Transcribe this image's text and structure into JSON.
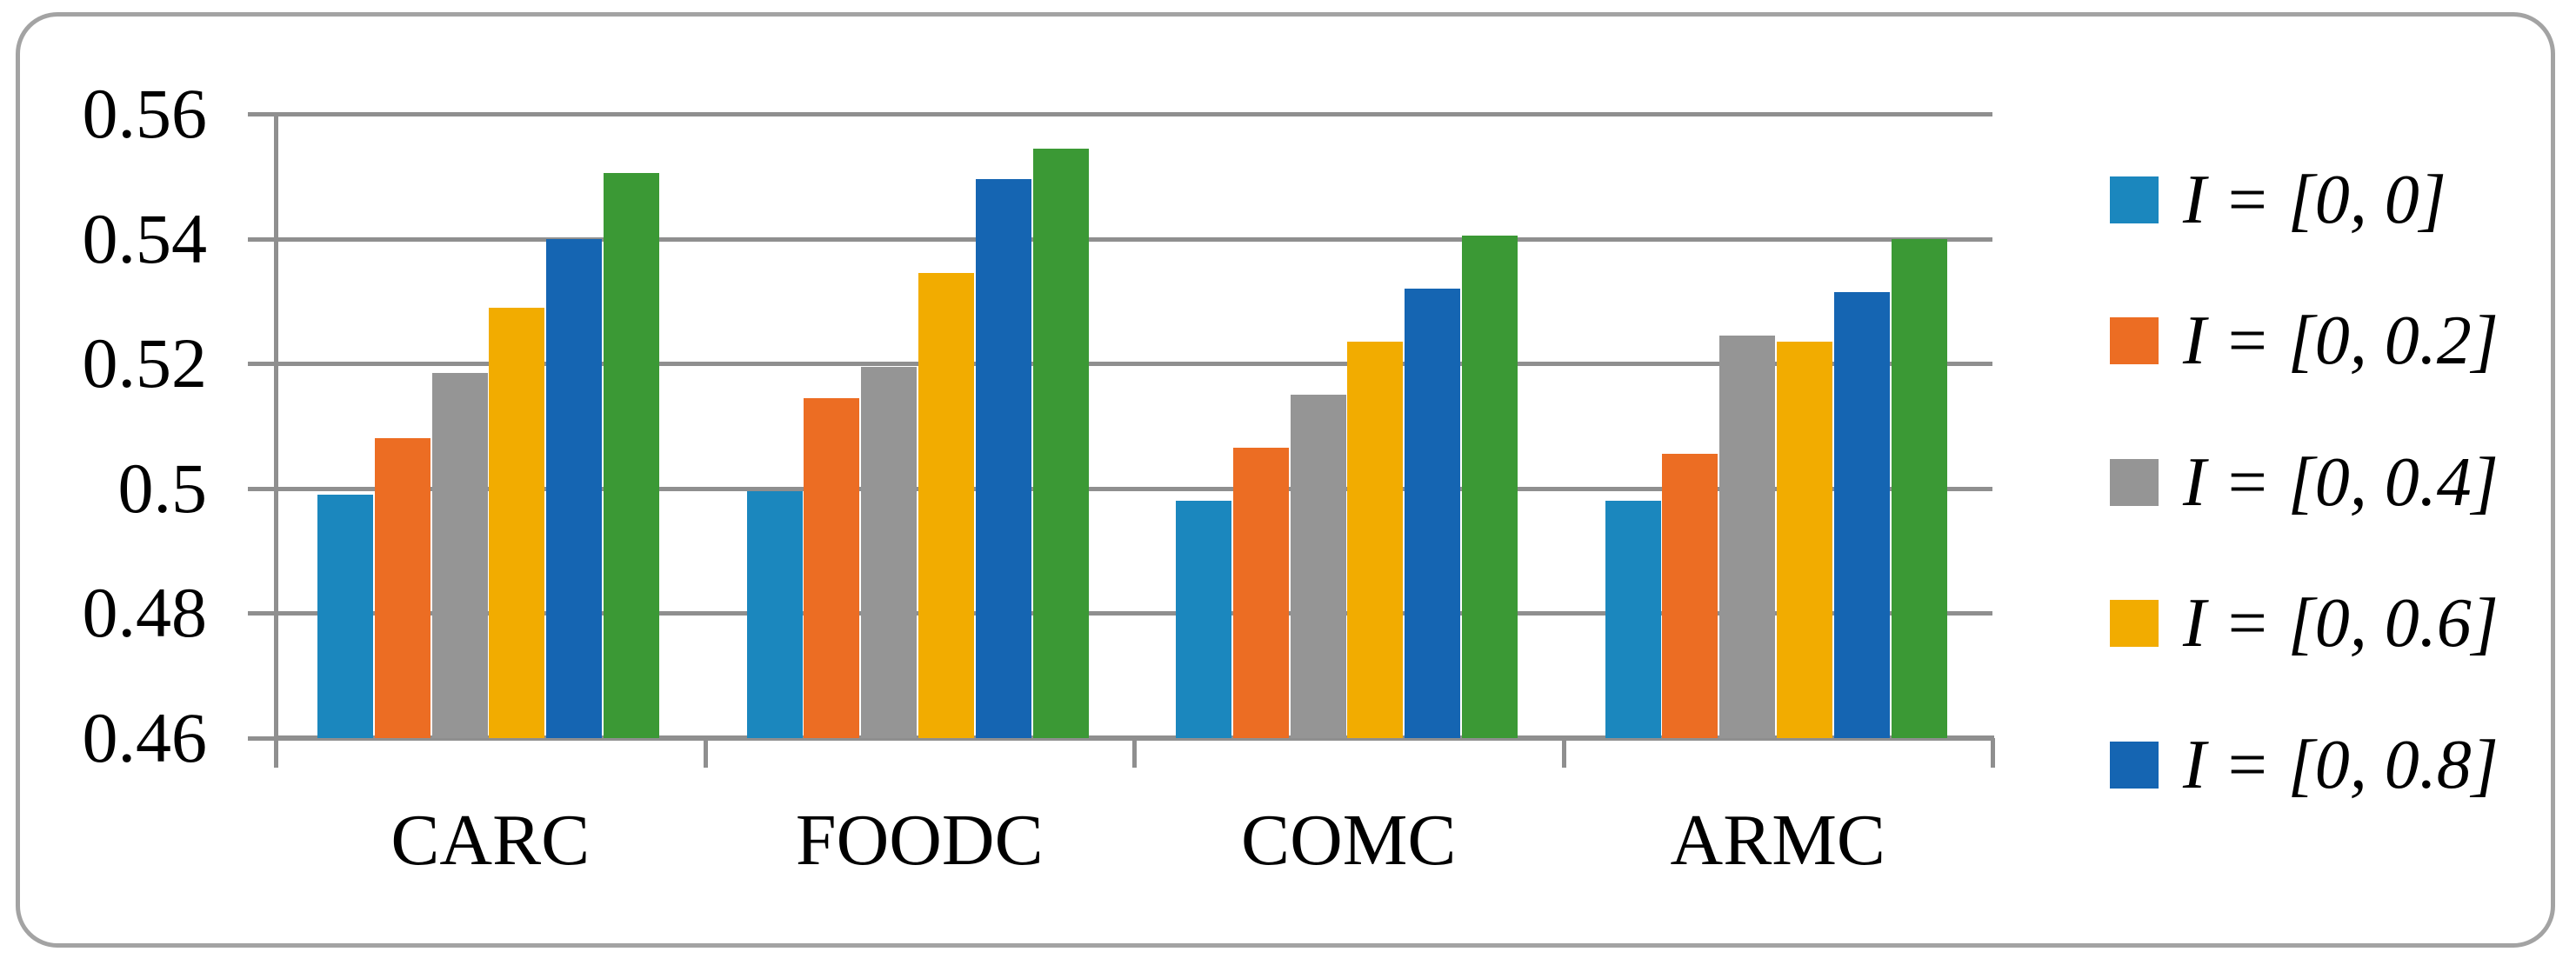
{
  "chart_data": {
    "type": "bar",
    "title": "",
    "xlabel": "",
    "ylabel": "",
    "categories": [
      "CARC",
      "FOODC",
      "COMC",
      "ARMC"
    ],
    "series": [
      {
        "name": "I = [0, 0]",
        "color": "#1b87be",
        "in_legend": true,
        "values": [
          0.499,
          0.4995,
          0.498,
          0.498
        ]
      },
      {
        "name": "I = [0, 0.2]",
        "color": "#ec6d23",
        "in_legend": true,
        "values": [
          0.508,
          0.5145,
          0.5065,
          0.5055
        ]
      },
      {
        "name": "I = [0, 0.4]",
        "color": "#959595",
        "in_legend": true,
        "values": [
          0.5185,
          0.5195,
          0.515,
          0.5245
        ]
      },
      {
        "name": "I = [0, 0.6]",
        "color": "#f2ac00",
        "in_legend": true,
        "values": [
          0.529,
          0.5345,
          0.5235,
          0.5235
        ]
      },
      {
        "name": "I = [0, 0.8]",
        "color": "#1565b2",
        "in_legend": true,
        "values": [
          0.54,
          0.5495,
          0.532,
          0.5315
        ]
      },
      {
        "name": "",
        "color": "#3b9935",
        "in_legend": false,
        "values": [
          0.5505,
          0.5545,
          0.5405,
          0.54
        ]
      }
    ],
    "ylim": [
      0.46,
      0.56
    ],
    "y_ticks": [
      {
        "value": 0.46,
        "label": "0.46"
      },
      {
        "value": 0.48,
        "label": "0.48"
      },
      {
        "value": 0.5,
        "label": "0.5"
      },
      {
        "value": 0.52,
        "label": "0.52"
      },
      {
        "value": 0.54,
        "label": "0.54"
      },
      {
        "value": 0.56,
        "label": "0.56"
      }
    ],
    "grid": true,
    "legend_position": "right"
  },
  "colors": {
    "gridline": "#8f8f8f",
    "axis": "#8f8f8f",
    "frame_border": "#a3a3a3",
    "background": "#ffffff",
    "text": "#000000"
  }
}
